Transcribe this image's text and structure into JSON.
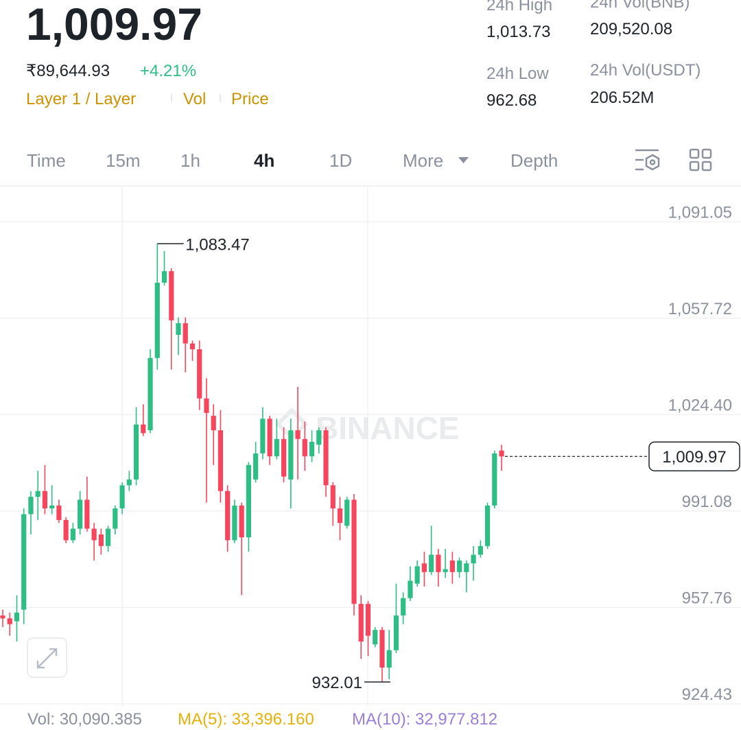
{
  "header": {
    "price": "1,009.97",
    "fiat_price": "₹89,644.93",
    "change": "+4.21%",
    "tags": [
      "Layer 1 / Layer",
      "Vol",
      "Price"
    ]
  },
  "stats": [
    {
      "label": "24h High",
      "value": "1,013.73"
    },
    {
      "label": "24h Vol(BNB)",
      "value": "209,520.08"
    },
    {
      "label": "24h Low",
      "value": "962.68"
    },
    {
      "label": "24h Vol(USDT)",
      "value": "206.52M"
    }
  ],
  "tabs": [
    "Time",
    "15m",
    "1h",
    "4h",
    "1D",
    "More",
    "Depth"
  ],
  "active_tab_index": 3,
  "chart_data": {
    "type": "candlestick",
    "watermark": "BINANCE",
    "up_color": "#2ebd85",
    "down_color": "#f6465d",
    "grid": true,
    "ylim": [
      924.43,
      1103.21
    ],
    "yticks": [
      {
        "value": 1091.05,
        "label": "1,091.05"
      },
      {
        "value": 1057.72,
        "label": "1,057.72"
      },
      {
        "value": 1024.4,
        "label": "1,024.40"
      },
      991.08,
      957.76,
      924.43
    ],
    "open": [
      955,
      954,
      953,
      957,
      990,
      996,
      998,
      992,
      993,
      988,
      981,
      985,
      995,
      985,
      983,
      979,
      985,
      992,
      1000,
      1002,
      1021,
      1019,
      1044,
      1070,
      1074,
      1052,
      1056,
      1049,
      1047,
      1030,
      1024,
      1019,
      998,
      981,
      993,
      982,
      1002,
      1011,
      1023,
      1010,
      1016,
      1002,
      1019,
      1016,
      1010,
      1014,
      1019,
      1000,
      992,
      986,
      995,
      959,
      959,
      945,
      950,
      937,
      943,
      955,
      961,
      966,
      973,
      970,
      976,
      970,
      974,
      970,
      970,
      973,
      976,
      979,
      993,
      1012
    ],
    "high": [
      957,
      956,
      962,
      992,
      998,
      1005,
      1007,
      1000,
      995,
      989,
      987,
      998,
      1003,
      987,
      985,
      986,
      993,
      1001,
      1005,
      1027,
      1028,
      1047,
      1083.47,
      1081,
      1075,
      1058,
      1058,
      1050,
      1050,
      1037,
      1028,
      1026,
      1000,
      995,
      994,
      1008,
      1015,
      1027,
      1024,
      1023,
      1020,
      1023,
      1034,
      1022,
      1019,
      1020,
      1020,
      1001,
      996,
      996,
      997,
      962,
      960,
      951,
      951,
      950,
      966,
      963,
      972,
      974,
      977,
      986,
      978,
      978,
      977,
      975,
      974,
      979,
      981,
      994,
      1012,
      1014
    ],
    "low": [
      951,
      948,
      946,
      952,
      983,
      988,
      990,
      990,
      987,
      980,
      980,
      983,
      984,
      974,
      976,
      977,
      983,
      990,
      998,
      1000,
      1017,
      1018,
      1040,
      1069,
      1040,
      1045,
      1039,
      1043,
      1026,
      994,
      1007,
      994,
      977,
      980,
      962,
      977,
      1001,
      1009,
      1007,
      1009,
      1001,
      992,
      1002,
      1005,
      1008,
      1011,
      996,
      986,
      981,
      985,
      955,
      940,
      941,
      944,
      932.01,
      933,
      942,
      952,
      960,
      965,
      965,
      969,
      965,
      968,
      966,
      968,
      963,
      967,
      975,
      978,
      992,
      1005
    ],
    "close": [
      954,
      952,
      956,
      990,
      996,
      998,
      992,
      993,
      988,
      981,
      985,
      995,
      985,
      981,
      979,
      985,
      992,
      1000,
      1002,
      1021,
      1018,
      1044,
      1070,
      1074,
      1057,
      1056,
      1049,
      1047,
      1030,
      1025,
      1019,
      998,
      981,
      993,
      982,
      1007,
      1011,
      1023,
      1010,
      1016,
      1003,
      1019,
      1016,
      1010,
      1015,
      1019,
      1000,
      992,
      987,
      995,
      959,
      946,
      948,
      950,
      937,
      943,
      955,
      961,
      967,
      972,
      970,
      976,
      970,
      971,
      970,
      974,
      973,
      976,
      979,
      993,
      1011,
      1009.97
    ],
    "high_marker": {
      "value": 1083.47,
      "label": "1,083.47"
    },
    "low_marker": 932.01,
    "last_price": {
      "value": 1009.97,
      "label": "1,009.97"
    }
  },
  "footer": {
    "vol": "Vol: 30,090.385",
    "ma5": "MA(5): 33,396.160",
    "ma10": "MA(10): 32,977.812"
  }
}
